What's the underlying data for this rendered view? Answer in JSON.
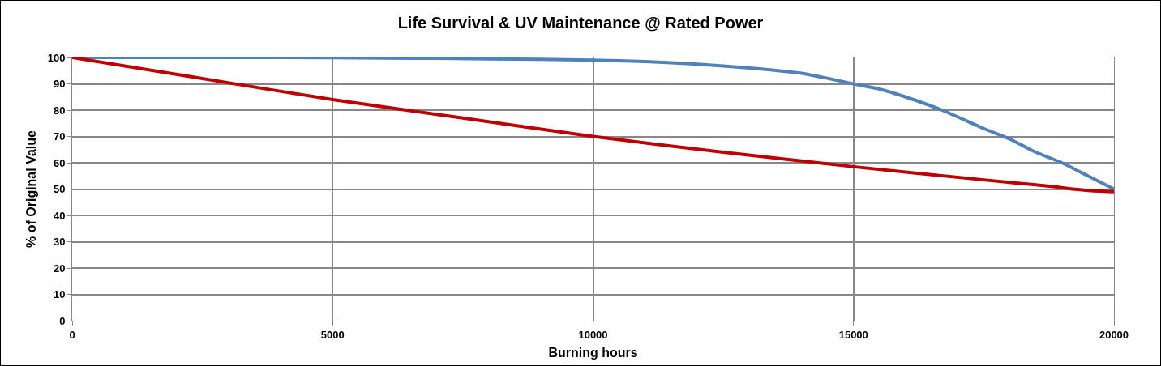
{
  "chart_data": {
    "type": "line",
    "title": "Life Survival & UV Maintenance @ Rated Power",
    "xlabel": "Burning hours",
    "ylabel": "% of Original Value",
    "series": [
      {
        "color": "#4f81bd",
        "x": [
          0,
          2000,
          4000,
          6000,
          8000,
          10000,
          11000,
          12000,
          13000,
          14000,
          15000,
          15500,
          16000,
          16700,
          17500,
          18000,
          18500,
          19000,
          19500,
          20000
        ],
        "values": [
          100,
          100,
          100,
          99.8,
          99.5,
          99,
          98.5,
          97.5,
          96,
          94,
          90,
          88,
          85,
          80,
          73,
          69,
          64,
          60,
          55,
          50
        ]
      },
      {
        "color": "#c00000",
        "x": [
          0,
          2500,
          5000,
          7500,
          10000,
          12500,
          15000,
          17500,
          18800,
          19200,
          19500,
          20000
        ],
        "values": [
          100,
          92,
          84,
          77,
          70,
          64,
          58.5,
          53.5,
          51,
          50,
          49.5,
          49
        ]
      }
    ],
    "xlim": [
      0,
      20000
    ],
    "xticks": [
      0,
      5000,
      10000,
      15000,
      20000
    ],
    "ylim": [
      0,
      100
    ],
    "yticks": [
      0,
      10,
      20,
      30,
      40,
      50,
      60,
      70,
      80,
      90,
      100
    ],
    "grid": true,
    "legend": false,
    "marker": "none",
    "line_style": "solid"
  }
}
